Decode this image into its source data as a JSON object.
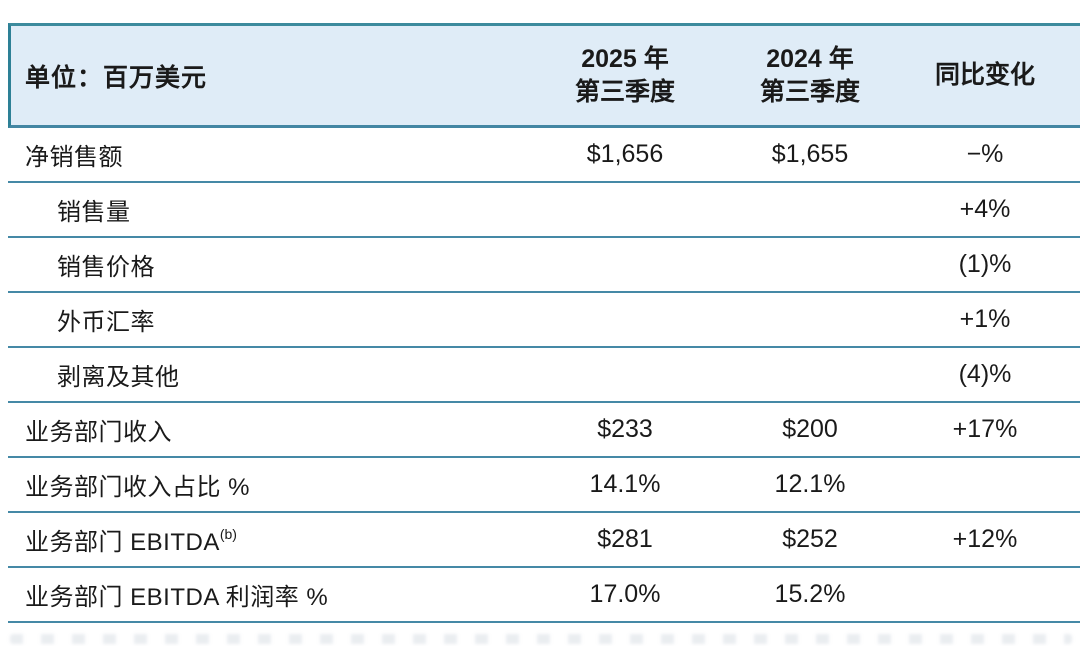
{
  "table": {
    "unit_label": "单位：百万美元",
    "columns": {
      "col_2025_line1": "2025 年",
      "col_2025_line2": "第三季度",
      "col_2024_line1": "2024 年",
      "col_2024_line2": "第三季度",
      "col_change": "同比变化"
    },
    "rows": [
      {
        "label": "净销售额",
        "sup": "",
        "indent": false,
        "q3_2025": "$1,656",
        "q3_2024": "$1,655",
        "change": "−%"
      },
      {
        "label": "销售量",
        "sup": "",
        "indent": true,
        "q3_2025": "",
        "q3_2024": "",
        "change": "+4%"
      },
      {
        "label": "销售价格",
        "sup": "",
        "indent": true,
        "q3_2025": "",
        "q3_2024": "",
        "change": "(1)%"
      },
      {
        "label": "外币汇率",
        "sup": "",
        "indent": true,
        "q3_2025": "",
        "q3_2024": "",
        "change": "+1%"
      },
      {
        "label": "剥离及其他",
        "sup": "",
        "indent": true,
        "q3_2025": "",
        "q3_2024": "",
        "change": "(4)%"
      },
      {
        "label": "业务部门收入",
        "sup": "",
        "indent": false,
        "q3_2025": "$233",
        "q3_2024": "$200",
        "change": "+17%"
      },
      {
        "label": "业务部门收入占比 %",
        "sup": "",
        "indent": false,
        "q3_2025": "14.1%",
        "q3_2024": "12.1%",
        "change": ""
      },
      {
        "label": "业务部门 EBITDA",
        "sup": "(b)",
        "indent": false,
        "q3_2025": "$281",
        "q3_2024": "$252",
        "change": "+12%"
      },
      {
        "label": "业务部门 EBITDA 利润率 %",
        "sup": "",
        "indent": false,
        "q3_2025": "17.0%",
        "q3_2024": "15.2%",
        "change": ""
      }
    ]
  },
  "colors": {
    "header_background": "#dfecf7",
    "header_top_border": "#3c8b9d",
    "rule_line": "#4589a6",
    "text": "#1a1a1a"
  }
}
